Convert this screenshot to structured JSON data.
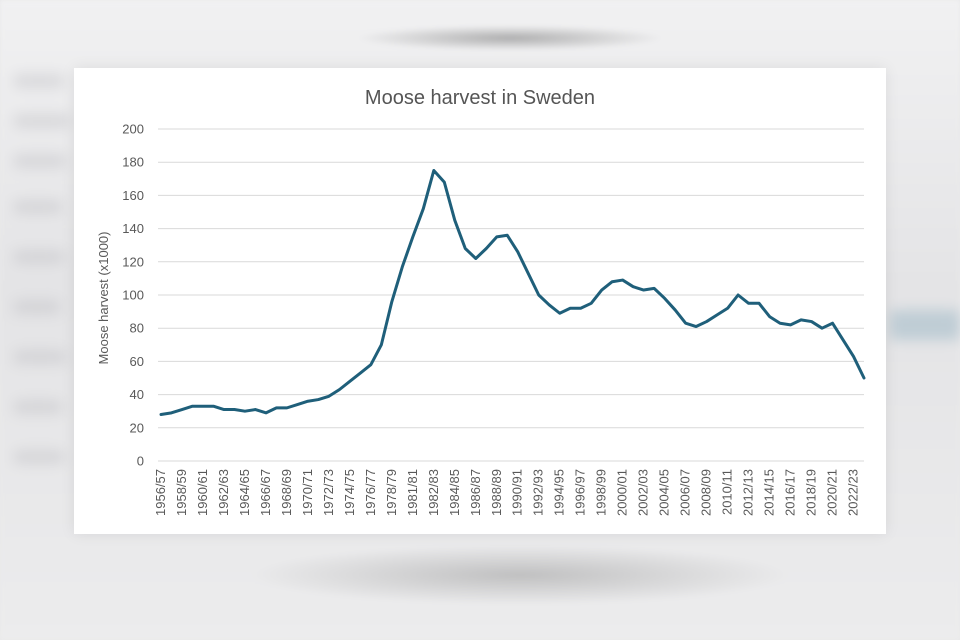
{
  "chart_data": {
    "type": "line",
    "title": "Moose harvest in Sweden",
    "xlabel": "",
    "ylabel": "Moose harvest (x1000)",
    "ylim": [
      0,
      200
    ],
    "yticks": [
      0,
      20,
      40,
      60,
      80,
      100,
      120,
      140,
      160,
      180,
      200
    ],
    "grid": true,
    "legend": "none",
    "colors": {
      "series": "#1f5f7a",
      "grid": "#d9d9d9",
      "text": "#595959"
    },
    "x_tick_labels": [
      "1956/57",
      "1958/59",
      "1960/61",
      "1962/63",
      "1964/65",
      "1966/67",
      "1968/69",
      "1970/71",
      "1972/73",
      "1974/75",
      "1976/77",
      "1978/79",
      "1981/81",
      "1982/83",
      "1984/85",
      "1986/87",
      "1988/89",
      "1990/91",
      "1992/93",
      "1994/95",
      "1996/97",
      "1998/99",
      "2000/01",
      "2002/03",
      "2004/05",
      "2006/07",
      "2008/09",
      "2010/11",
      "2012/13",
      "2014/15",
      "2016/17",
      "2018/19",
      "2020/21",
      "2022/23"
    ],
    "categories": [
      "1956/57",
      "1957/58",
      "1958/59",
      "1959/60",
      "1960/61",
      "1961/62",
      "1962/63",
      "1963/64",
      "1964/65",
      "1965/66",
      "1966/67",
      "1967/68",
      "1968/69",
      "1969/70",
      "1970/71",
      "1971/72",
      "1972/73",
      "1973/74",
      "1974/75",
      "1975/76",
      "1976/77",
      "1977/78",
      "1978/79",
      "1979/80",
      "1981/81",
      "1981/82",
      "1982/83",
      "1983/84",
      "1984/85",
      "1985/86",
      "1986/87",
      "1987/88",
      "1988/89",
      "1989/90",
      "1990/91",
      "1991/92",
      "1992/93",
      "1993/94",
      "1994/95",
      "1995/96",
      "1996/97",
      "1997/98",
      "1998/99",
      "1999/00",
      "2000/01",
      "2001/02",
      "2002/03",
      "2003/04",
      "2004/05",
      "2005/06",
      "2006/07",
      "2007/08",
      "2008/09",
      "2009/10",
      "2010/11",
      "2011/12",
      "2012/13",
      "2013/14",
      "2014/15",
      "2015/16",
      "2016/17",
      "2017/18",
      "2018/19",
      "2019/20",
      "2020/21",
      "2021/22",
      "2022/23",
      "2023/24"
    ],
    "series": [
      {
        "values": [
          28,
          29,
          31,
          33,
          33,
          33,
          31,
          31,
          30,
          31,
          29,
          32,
          32,
          34,
          36,
          37,
          39,
          43,
          48,
          53,
          58,
          70,
          96,
          117,
          135,
          152,
          175,
          168,
          145,
          128,
          122,
          128,
          135,
          136,
          126,
          113,
          100,
          94,
          89,
          92,
          92,
          95,
          103,
          108,
          109,
          105,
          103,
          104,
          98,
          91,
          83,
          81,
          84,
          88,
          92,
          100,
          95,
          95,
          87,
          83,
          82,
          85,
          84,
          80,
          83,
          73,
          63,
          50
        ]
      }
    ]
  }
}
